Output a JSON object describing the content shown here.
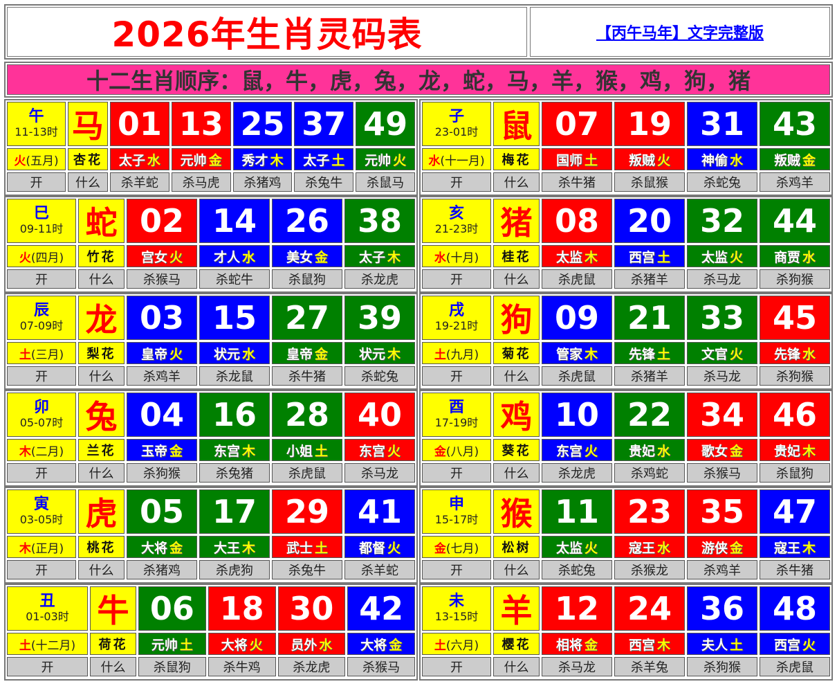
{
  "header": {
    "title": "2026年生肖灵码表",
    "link": "【丙午马年】文字完整版"
  },
  "banner": "十二生肖顺序：鼠，牛，虎，兔，龙，蛇，马，羊，猴，鸡，狗，猪",
  "labels": {
    "open": "开",
    "what": "什么"
  },
  "colors": {
    "red": "#ff0000",
    "blue": "#0000ff",
    "green": "#008000",
    "yellow": "#ffff00",
    "pink": "#ff3399",
    "gray": "#cccccc"
  },
  "blocks": [
    {
      "branch": "午",
      "hours": "11-13时",
      "element": "火",
      "month": "(五月)",
      "animal": "马",
      "flower": "杏花",
      "numbers": [
        {
          "n": "01",
          "c": "red",
          "t": "太子",
          "e": "水"
        },
        {
          "n": "13",
          "c": "red",
          "t": "元帅",
          "e": "金"
        },
        {
          "n": "25",
          "c": "blue",
          "t": "秀才",
          "e": "木"
        },
        {
          "n": "37",
          "c": "blue",
          "t": "太子",
          "e": "土"
        },
        {
          "n": "49",
          "c": "green",
          "t": "元帅",
          "e": "火"
        }
      ],
      "kills": [
        "杀羊蛇",
        "杀马虎",
        "杀猪鸡",
        "杀兔牛",
        "杀鼠马"
      ]
    },
    {
      "branch": "子",
      "hours": "23-01时",
      "element": "水",
      "month": "(十一月)",
      "animal": "鼠",
      "flower": "梅花",
      "numbers": [
        {
          "n": "07",
          "c": "red",
          "t": "国师",
          "e": "土"
        },
        {
          "n": "19",
          "c": "red",
          "t": "叛贼",
          "e": "火"
        },
        {
          "n": "31",
          "c": "blue",
          "t": "神偷",
          "e": "水"
        },
        {
          "n": "43",
          "c": "green",
          "t": "叛贼",
          "e": "金"
        }
      ],
      "kills": [
        "杀牛猪",
        "杀鼠猴",
        "杀蛇兔",
        "杀鸡羊"
      ]
    },
    {
      "branch": "巳",
      "hours": "09-11时",
      "element": "火",
      "month": "(四月)",
      "animal": "蛇",
      "flower": "竹花",
      "numbers": [
        {
          "n": "02",
          "c": "red",
          "t": "宫女",
          "e": "火"
        },
        {
          "n": "14",
          "c": "blue",
          "t": "才人",
          "e": "水"
        },
        {
          "n": "26",
          "c": "blue",
          "t": "美女",
          "e": "金"
        },
        {
          "n": "38",
          "c": "green",
          "t": "太子",
          "e": "木"
        }
      ],
      "kills": [
        "杀猴马",
        "杀蛇牛",
        "杀鼠狗",
        "杀龙虎"
      ]
    },
    {
      "branch": "亥",
      "hours": "21-23时",
      "element": "水",
      "month": "(十月)",
      "animal": "猪",
      "flower": "桂花",
      "numbers": [
        {
          "n": "08",
          "c": "red",
          "t": "太监",
          "e": "木"
        },
        {
          "n": "20",
          "c": "blue",
          "t": "西宫",
          "e": "土"
        },
        {
          "n": "32",
          "c": "green",
          "t": "太监",
          "e": "火"
        },
        {
          "n": "44",
          "c": "green",
          "t": "商贾",
          "e": "水"
        }
      ],
      "kills": [
        "杀虎鼠",
        "杀猪羊",
        "杀马龙",
        "杀狗猴"
      ]
    },
    {
      "branch": "辰",
      "hours": "07-09时",
      "element": "土",
      "month": "(三月)",
      "animal": "龙",
      "flower": "梨花",
      "numbers": [
        {
          "n": "03",
          "c": "blue",
          "t": "皇帝",
          "e": "火"
        },
        {
          "n": "15",
          "c": "blue",
          "t": "状元",
          "e": "水"
        },
        {
          "n": "27",
          "c": "green",
          "t": "皇帝",
          "e": "金"
        },
        {
          "n": "39",
          "c": "green",
          "t": "状元",
          "e": "木"
        }
      ],
      "kills": [
        "杀鸡羊",
        "杀龙鼠",
        "杀牛猪",
        "杀蛇兔"
      ]
    },
    {
      "branch": "戌",
      "hours": "19-21时",
      "element": "土",
      "month": "(九月)",
      "animal": "狗",
      "flower": "菊花",
      "numbers": [
        {
          "n": "09",
          "c": "blue",
          "t": "管家",
          "e": "木"
        },
        {
          "n": "21",
          "c": "green",
          "t": "先锋",
          "e": "土"
        },
        {
          "n": "33",
          "c": "green",
          "t": "文官",
          "e": "火"
        },
        {
          "n": "45",
          "c": "red",
          "t": "先锋",
          "e": "水"
        }
      ],
      "kills": [
        "杀虎鼠",
        "杀猪羊",
        "杀马龙",
        "杀狗猴"
      ]
    },
    {
      "branch": "卯",
      "hours": "05-07时",
      "element": "木",
      "month": "(二月)",
      "animal": "兔",
      "flower": "兰花",
      "numbers": [
        {
          "n": "04",
          "c": "blue",
          "t": "玉帝",
          "e": "金"
        },
        {
          "n": "16",
          "c": "green",
          "t": "东宫",
          "e": "木"
        },
        {
          "n": "28",
          "c": "green",
          "t": "小姐",
          "e": "土"
        },
        {
          "n": "40",
          "c": "red",
          "t": "东宫",
          "e": "火"
        }
      ],
      "kills": [
        "杀狗猴",
        "杀兔猪",
        "杀虎鼠",
        "杀马龙"
      ]
    },
    {
      "branch": "酉",
      "hours": "17-19时",
      "element": "金",
      "month": "(八月)",
      "animal": "鸡",
      "flower": "葵花",
      "numbers": [
        {
          "n": "10",
          "c": "blue",
          "t": "东宫",
          "e": "火"
        },
        {
          "n": "22",
          "c": "green",
          "t": "贵妃",
          "e": "水"
        },
        {
          "n": "34",
          "c": "red",
          "t": "歌女",
          "e": "金"
        },
        {
          "n": "46",
          "c": "red",
          "t": "贵妃",
          "e": "木"
        }
      ],
      "kills": [
        "杀龙虎",
        "杀鸡蛇",
        "杀猴马",
        "杀鼠狗"
      ]
    },
    {
      "branch": "寅",
      "hours": "03-05时",
      "element": "木",
      "month": "(正月)",
      "animal": "虎",
      "flower": "桃花",
      "numbers": [
        {
          "n": "05",
          "c": "green",
          "t": "大将",
          "e": "金"
        },
        {
          "n": "17",
          "c": "green",
          "t": "大王",
          "e": "木"
        },
        {
          "n": "29",
          "c": "red",
          "t": "武士",
          "e": "土"
        },
        {
          "n": "41",
          "c": "blue",
          "t": "都督",
          "e": "火"
        }
      ],
      "kills": [
        "杀猪鸡",
        "杀虎狗",
        "杀兔牛",
        "杀羊蛇"
      ]
    },
    {
      "branch": "申",
      "hours": "15-17时",
      "element": "金",
      "month": "(七月)",
      "animal": "猴",
      "flower": "松树",
      "numbers": [
        {
          "n": "11",
          "c": "green",
          "t": "太监",
          "e": "火"
        },
        {
          "n": "23",
          "c": "red",
          "t": "寇王",
          "e": "水"
        },
        {
          "n": "35",
          "c": "red",
          "t": "游侠",
          "e": "金"
        },
        {
          "n": "47",
          "c": "blue",
          "t": "寇王",
          "e": "木"
        }
      ],
      "kills": [
        "杀蛇兔",
        "杀猴龙",
        "杀鸡羊",
        "杀牛猪"
      ]
    },
    {
      "branch": "丑",
      "hours": "01-03时",
      "element": "土",
      "month": "(十二月)",
      "animal": "牛",
      "flower": "荷花",
      "numbers": [
        {
          "n": "06",
          "c": "green",
          "t": "元帅",
          "e": "土"
        },
        {
          "n": "18",
          "c": "red",
          "t": "大将",
          "e": "火"
        },
        {
          "n": "30",
          "c": "red",
          "t": "员外",
          "e": "水"
        },
        {
          "n": "42",
          "c": "blue",
          "t": "大将",
          "e": "金"
        }
      ],
      "kills": [
        "杀鼠狗",
        "杀牛鸡",
        "杀龙虎",
        "杀猴马"
      ]
    },
    {
      "branch": "未",
      "hours": "13-15时",
      "element": "土",
      "month": "(六月)",
      "animal": "羊",
      "flower": "樱花",
      "numbers": [
        {
          "n": "12",
          "c": "red",
          "t": "相将",
          "e": "金"
        },
        {
          "n": "24",
          "c": "red",
          "t": "西宫",
          "e": "木"
        },
        {
          "n": "36",
          "c": "blue",
          "t": "夫人",
          "e": "土"
        },
        {
          "n": "48",
          "c": "blue",
          "t": "西宫",
          "e": "火"
        }
      ],
      "kills": [
        "杀马龙",
        "杀羊兔",
        "杀狗猴",
        "杀虎鼠"
      ]
    }
  ]
}
